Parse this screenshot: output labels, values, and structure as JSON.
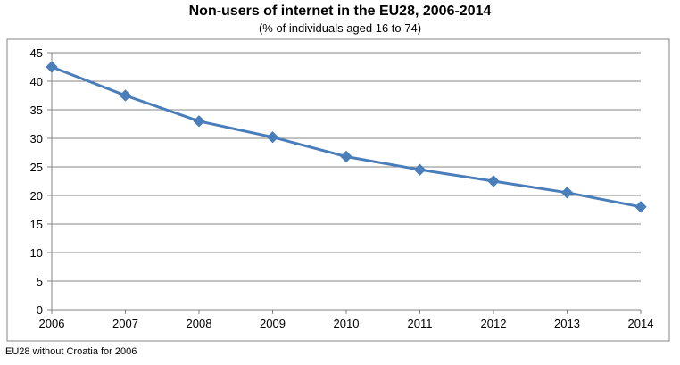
{
  "chart_data": {
    "type": "line",
    "title": "Non-users of internet in the EU28, 2006-2014",
    "subtitle": "(% of individuals aged 16 to 74)",
    "x": [
      "2006",
      "2007",
      "2008",
      "2009",
      "2010",
      "2011",
      "2012",
      "2013",
      "2014"
    ],
    "series": [
      {
        "values": [
          42.5,
          37.5,
          33.0,
          30.2,
          26.8,
          24.5,
          22.5,
          20.5,
          18.0
        ]
      }
    ],
    "ylim": [
      0,
      45
    ],
    "yticks": [
      "0",
      "5",
      "10",
      "15",
      "20",
      "25",
      "30",
      "35",
      "40",
      "45"
    ],
    "grid": true,
    "legend": "none",
    "colors": {
      "line": "#4a7ebb",
      "grid": "#868686",
      "frame": "#868686"
    }
  },
  "footnote": "EU28 without Croatia for 2006"
}
